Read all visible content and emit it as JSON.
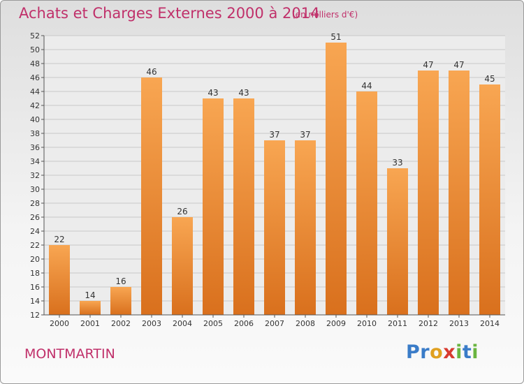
{
  "header": {
    "title": "Achats et Charges Externes 2000 à 2014",
    "subtitle": "(en milliers d'€)"
  },
  "footer": {
    "city": "MONTMARTIN",
    "logo_letters": [
      "P",
      "r",
      "o",
      "x",
      "i",
      "t",
      "i"
    ]
  },
  "colors": {
    "accent": "#c0306a",
    "bar_top": "#f8a652",
    "bar_bottom": "#d9701d",
    "logo": [
      "#3a7cc8",
      "#3a7cc8",
      "#e0a020",
      "#d83a30",
      "#6ab540",
      "#3a7cc8",
      "#6ab540"
    ]
  },
  "chart_data": {
    "type": "bar",
    "title": "Achats et Charges Externes 2000 à 2014",
    "categories": [
      "2000",
      "2001",
      "2002",
      "2003",
      "2004",
      "2005",
      "2006",
      "2007",
      "2008",
      "2009",
      "2010",
      "2011",
      "2012",
      "2013",
      "2014"
    ],
    "values": [
      22,
      14,
      16,
      46,
      26,
      43,
      43,
      37,
      37,
      51,
      44,
      33,
      47,
      47,
      45
    ],
    "ylim": [
      12,
      52
    ],
    "yticks": [
      12,
      14,
      16,
      18,
      20,
      22,
      24,
      26,
      28,
      30,
      32,
      34,
      36,
      38,
      40,
      42,
      44,
      46,
      48,
      50,
      52
    ],
    "grid": true,
    "legend": "none"
  }
}
